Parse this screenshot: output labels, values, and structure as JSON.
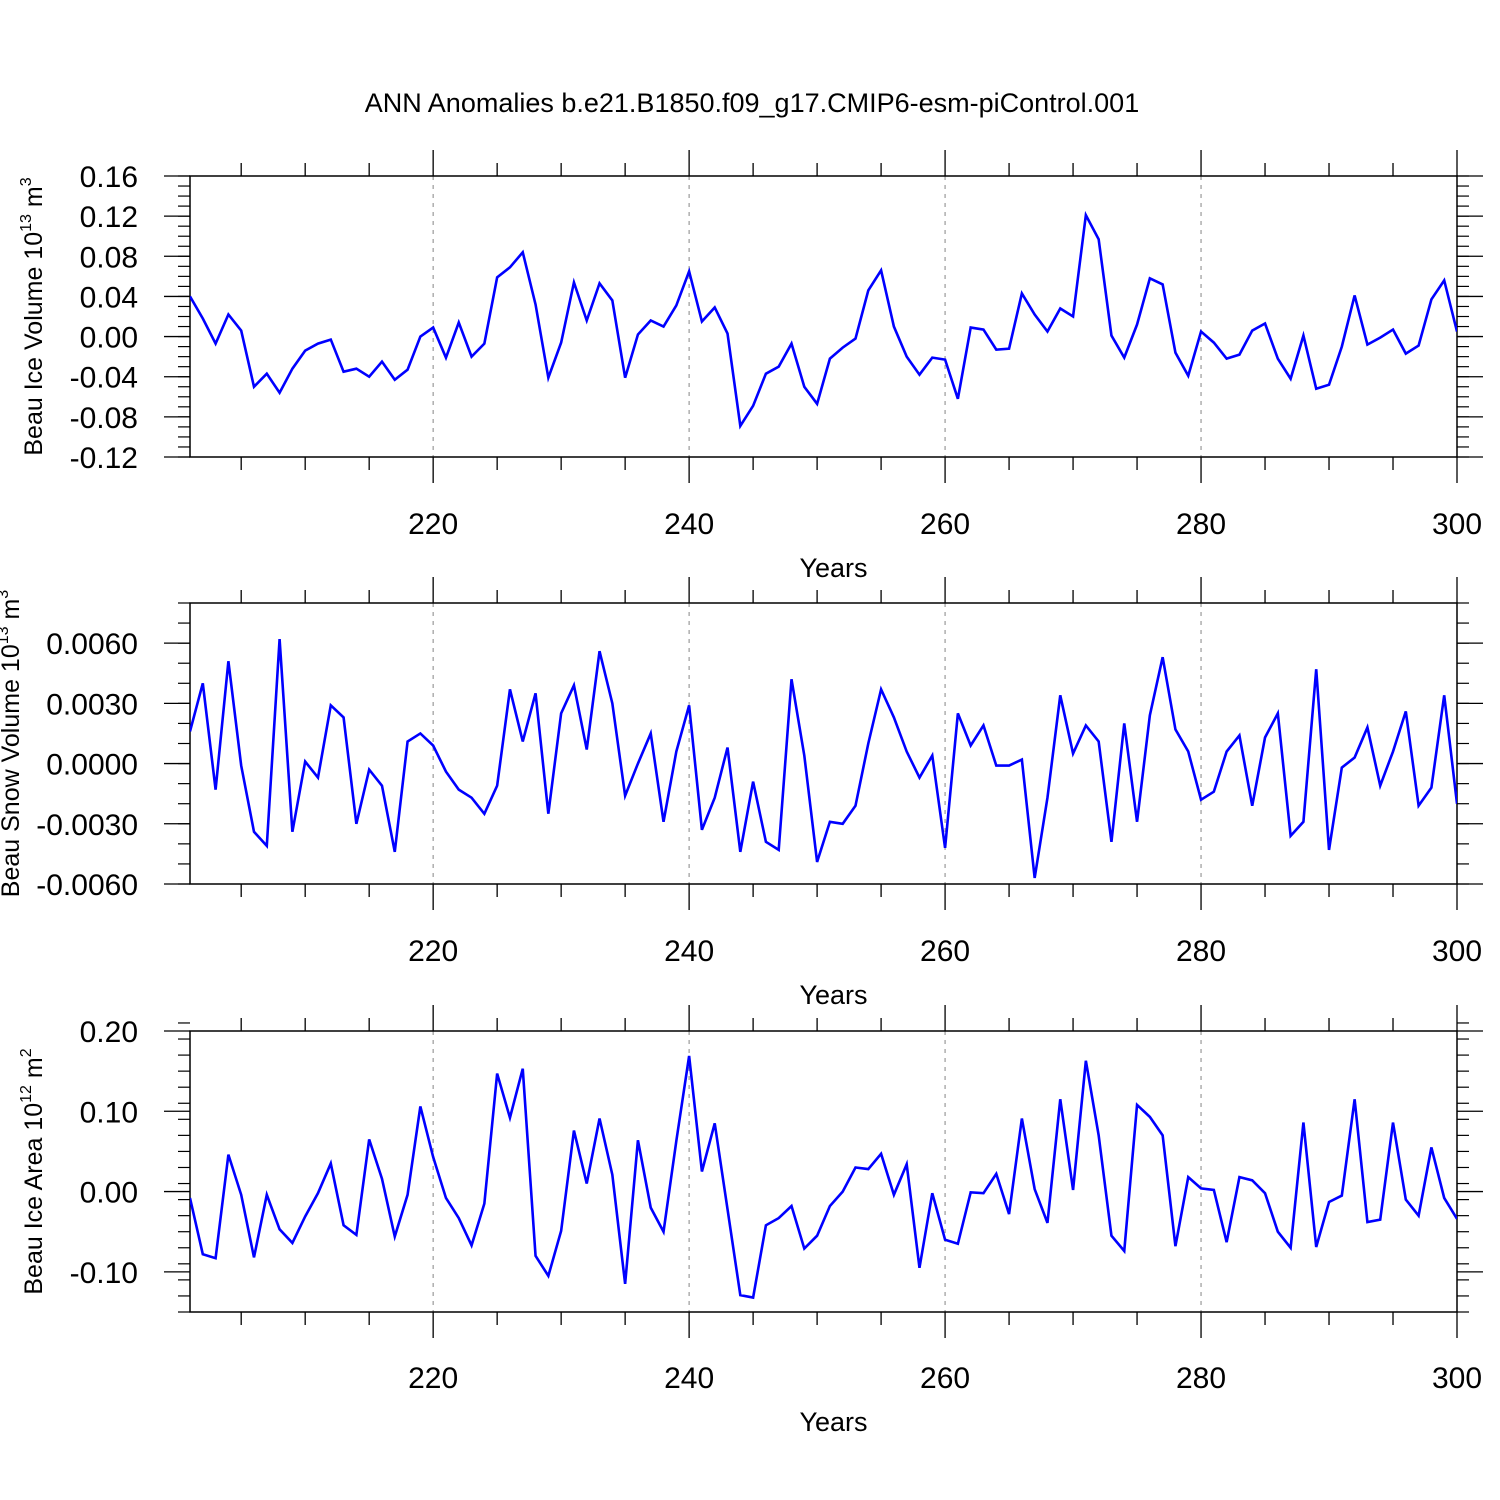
{
  "figure_title": "ANN Anomalies b.e21.B1850.f09_g17.CMIP6-esm-piControl.001",
  "colors": {
    "line": "#0000ff",
    "axis": "#000000",
    "grid": "#9a9a9a"
  },
  "chart_data": [
    {
      "type": "line",
      "title": "",
      "xlabel": "Years",
      "ylabel": {
        "prefix": "Beau Ice Volume 10",
        "exp": "13",
        "unit": " m",
        "unit_exp": "3"
      },
      "xlim": [
        201,
        300
      ],
      "ylim": [
        -0.12,
        0.16
      ],
      "xticks": [
        220,
        240,
        260,
        280,
        300
      ],
      "xtick_labels": [
        "220",
        "240",
        "260",
        "280",
        "300"
      ],
      "yticks": [
        -0.12,
        -0.08,
        -0.04,
        0.0,
        0.04,
        0.08,
        0.12,
        0.16
      ],
      "ytick_labels": [
        "-0.12",
        "-0.08",
        "-0.04",
        "0.00",
        "0.04",
        "0.08",
        "0.12",
        "0.16"
      ],
      "grid": "x-dashed",
      "series": [
        {
          "name": "Beau Ice Volume",
          "x_start": 201,
          "values": [
            0.04,
            0.018,
            -0.007,
            0.022,
            0.006,
            -0.05,
            -0.037,
            -0.056,
            -0.032,
            -0.014,
            -0.007,
            -0.003,
            -0.035,
            -0.032,
            -0.04,
            -0.025,
            -0.043,
            -0.033,
            0.0,
            0.009,
            -0.021,
            0.014,
            -0.02,
            -0.007,
            0.059,
            0.069,
            0.084,
            0.032,
            -0.041,
            -0.006,
            0.054,
            0.016,
            0.053,
            0.036,
            -0.041,
            0.002,
            0.016,
            0.01,
            0.031,
            0.065,
            0.015,
            0.029,
            0.003,
            -0.089,
            -0.069,
            -0.037,
            -0.03,
            -0.007,
            -0.05,
            -0.067,
            -0.022,
            -0.011,
            -0.002,
            0.046,
            0.066,
            0.01,
            -0.02,
            -0.038,
            -0.021,
            -0.023,
            -0.062,
            0.009,
            0.007,
            -0.013,
            -0.012,
            0.043,
            0.022,
            0.005,
            0.028,
            0.02,
            0.121,
            0.097,
            0.001,
            -0.021,
            0.012,
            0.058,
            0.052,
            -0.016,
            -0.039,
            0.005,
            -0.006,
            -0.022,
            -0.018,
            0.006,
            0.013,
            -0.022,
            -0.042,
            0.001,
            -0.052,
            -0.048,
            -0.01,
            0.041,
            -0.008,
            -0.001,
            0.007,
            -0.017,
            -0.009,
            0.037,
            0.056,
            0.005
          ]
        }
      ]
    },
    {
      "type": "line",
      "title": "",
      "xlabel": "Years",
      "ylabel": {
        "prefix": "Beau Snow Volume 10",
        "exp": "13",
        "unit": " m",
        "unit_exp": "3"
      },
      "xlim": [
        201,
        300
      ],
      "ylim": [
        -0.006,
        0.008
      ],
      "xticks": [
        220,
        240,
        260,
        280,
        300
      ],
      "xtick_labels": [
        "220",
        "240",
        "260",
        "280",
        "300"
      ],
      "yticks": [
        -0.006,
        -0.003,
        0.0,
        0.003,
        0.006
      ],
      "ytick_labels": [
        "-0.0060",
        "-0.0030",
        "0.0000",
        "0.0030",
        "0.0060"
      ],
      "grid": "x-dashed",
      "series": [
        {
          "name": "Beau Snow Volume",
          "x_start": 201,
          "values": [
            0.0016,
            0.004,
            -0.0013,
            0.0051,
            -0.0001,
            -0.0034,
            -0.0041,
            0.0062,
            -0.0034,
            0.0001,
            -0.0007,
            0.0029,
            0.0023,
            -0.003,
            -0.0003,
            -0.0011,
            -0.0044,
            0.0011,
            0.0015,
            0.0009,
            -0.0004,
            -0.0013,
            -0.0017,
            -0.0025,
            -0.0011,
            0.0037,
            0.0011,
            0.0035,
            -0.0025,
            0.0025,
            0.0039,
            0.0007,
            0.0056,
            0.003,
            -0.0016,
            0.0,
            0.0015,
            -0.0029,
            0.0006,
            0.0029,
            -0.0033,
            -0.0017,
            0.0008,
            -0.0044,
            -0.0009,
            -0.0039,
            -0.0043,
            0.0042,
            0.0004,
            -0.0049,
            -0.0029,
            -0.003,
            -0.0021,
            0.001,
            0.0037,
            0.0023,
            0.0006,
            -0.0007,
            0.0004,
            -0.0042,
            0.0025,
            0.0009,
            0.0019,
            -0.0001,
            -0.0001,
            0.0002,
            -0.0057,
            -0.0017,
            0.0034,
            0.0005,
            0.0019,
            0.0011,
            -0.0039,
            0.002,
            -0.0029,
            0.0024,
            0.0053,
            0.0017,
            0.0006,
            -0.0018,
            -0.0014,
            0.0006,
            0.0014,
            -0.0021,
            0.0013,
            0.0025,
            -0.0036,
            -0.0029,
            0.0047,
            -0.0043,
            -0.0002,
            0.0003,
            0.0018,
            -0.0011,
            0.0006,
            0.0026,
            -0.0021,
            -0.0012,
            0.0034,
            -0.002
          ]
        }
      ]
    },
    {
      "type": "line",
      "title": "",
      "xlabel": "Years",
      "ylabel": {
        "prefix": "Beau Ice Area 10",
        "exp": "12",
        "unit": " m",
        "unit_exp": "2"
      },
      "xlim": [
        201,
        300
      ],
      "ylim": [
        -0.15,
        0.2
      ],
      "xticks": [
        220,
        240,
        260,
        280,
        300
      ],
      "xtick_labels": [
        "220",
        "240",
        "260",
        "280",
        "300"
      ],
      "yticks": [
        -0.1,
        0.0,
        0.1,
        0.2
      ],
      "ytick_labels": [
        "-0.10",
        "0.00",
        "0.10",
        "0.20"
      ],
      "grid": "x-dashed",
      "series": [
        {
          "name": "Beau Ice Area",
          "x_start": 201,
          "values": [
            -0.008,
            -0.078,
            -0.083,
            0.046,
            -0.004,
            -0.082,
            -0.004,
            -0.047,
            -0.064,
            -0.031,
            -0.002,
            0.035,
            -0.042,
            -0.054,
            0.065,
            0.016,
            -0.056,
            -0.004,
            0.106,
            0.043,
            -0.008,
            -0.033,
            -0.067,
            -0.015,
            0.147,
            0.092,
            0.153,
            -0.08,
            -0.105,
            -0.049,
            0.076,
            0.01,
            0.091,
            0.021,
            -0.115,
            0.064,
            -0.02,
            -0.05,
            0.063,
            0.169,
            0.025,
            0.085,
            -0.022,
            -0.129,
            -0.132,
            -0.042,
            -0.033,
            -0.018,
            -0.071,
            -0.055,
            -0.018,
            0.0,
            0.03,
            0.028,
            0.047,
            -0.004,
            0.034,
            -0.095,
            -0.002,
            -0.06,
            -0.065,
            -0.001,
            -0.002,
            0.022,
            -0.028,
            0.091,
            0.003,
            -0.039,
            0.115,
            0.002,
            0.163,
            0.07,
            -0.055,
            -0.074,
            0.108,
            0.093,
            0.07,
            -0.068,
            0.018,
            0.004,
            0.002,
            -0.063,
            0.018,
            0.014,
            -0.002,
            -0.05,
            -0.07,
            0.086,
            -0.069,
            -0.013,
            -0.005,
            0.115,
            -0.038,
            -0.035,
            0.086,
            -0.01,
            -0.03,
            0.055,
            -0.008,
            -0.034
          ]
        }
      ]
    }
  ]
}
